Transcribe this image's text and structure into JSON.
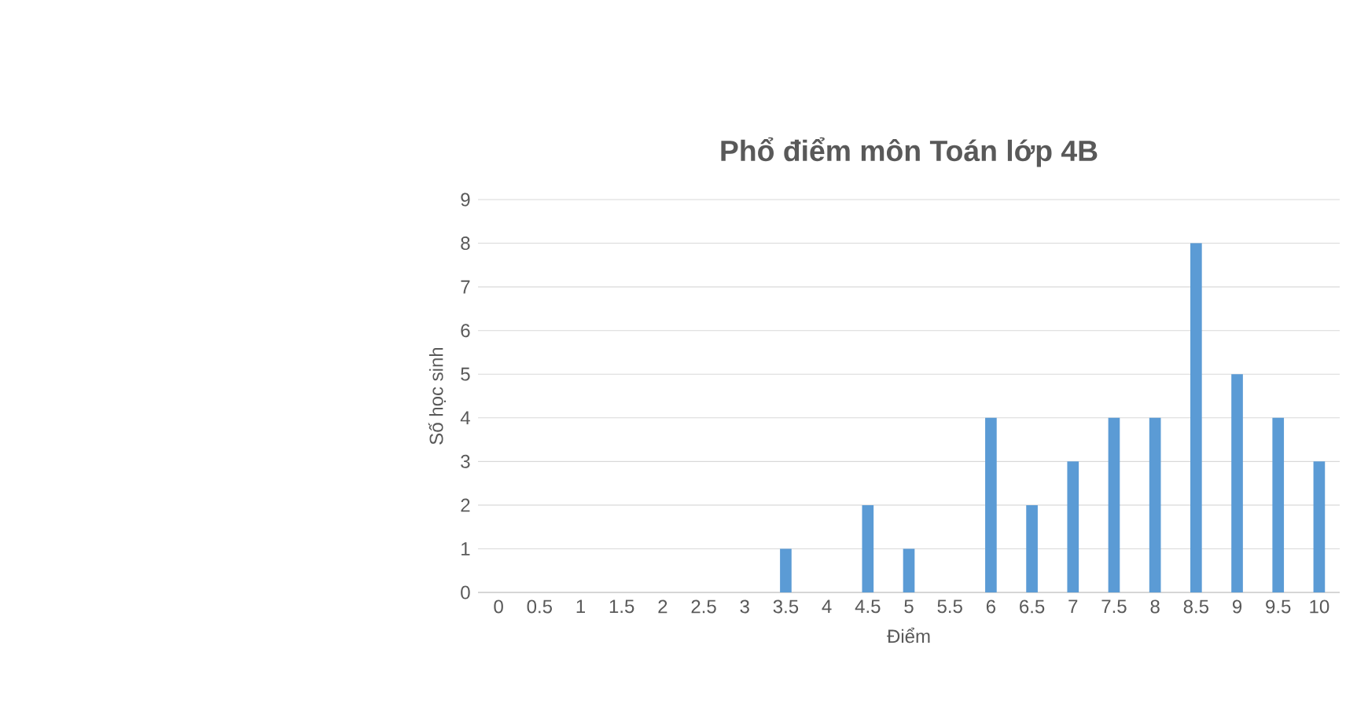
{
  "chart_data": {
    "type": "bar",
    "title": "Phổ điểm môn Toán lớp 4B",
    "xlabel": "Điểm",
    "ylabel": "Số học sinh",
    "categories": [
      "0",
      "0.5",
      "1",
      "1.5",
      "2",
      "2.5",
      "3",
      "3.5",
      "4",
      "4.5",
      "5",
      "5.5",
      "6",
      "6.5",
      "7",
      "7.5",
      "8",
      "8.5",
      "9",
      "9.5",
      "10"
    ],
    "values": [
      0,
      0,
      0,
      0,
      0,
      0,
      0,
      1,
      0,
      2,
      1,
      0,
      4,
      2,
      3,
      4,
      4,
      8,
      5,
      4,
      3
    ],
    "color": "#5b9bd5",
    "ylim": [
      0,
      9
    ],
    "yticks": [
      0,
      1,
      2,
      3,
      4,
      5,
      6,
      7,
      8,
      9
    ],
    "grid": "y"
  }
}
